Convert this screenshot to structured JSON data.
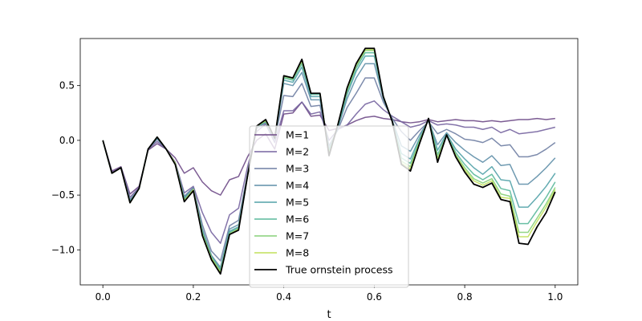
{
  "chart_data": {
    "type": "line",
    "xlabel": "t",
    "ylabel": "",
    "xlim": [
      -0.05,
      1.05
    ],
    "ylim": [
      -1.32,
      0.93
    ],
    "xticks": [
      0.0,
      0.2,
      0.4,
      0.6,
      0.8,
      1.0
    ],
    "xtick_labels": [
      "0.0",
      "0.2",
      "0.4",
      "0.6",
      "0.8",
      "1.0"
    ],
    "yticks": [
      0.5,
      0.0,
      -0.5,
      -1.0
    ],
    "ytick_labels": [
      "0.5",
      "0.0",
      "−0.5",
      "−1.0"
    ],
    "grid": false,
    "legend_position": "lower center",
    "x": [
      0.0,
      0.02,
      0.04,
      0.06,
      0.08,
      0.1,
      0.12,
      0.14,
      0.16,
      0.18,
      0.2,
      0.22,
      0.24,
      0.26,
      0.28,
      0.3,
      0.32,
      0.34,
      0.36,
      0.38,
      0.4,
      0.42,
      0.44,
      0.46,
      0.48,
      0.5,
      0.52,
      0.54,
      0.56,
      0.58,
      0.6,
      0.62,
      0.64,
      0.66,
      0.68,
      0.7,
      0.72,
      0.74,
      0.76,
      0.78,
      0.8,
      0.82,
      0.84,
      0.86,
      0.88,
      0.9,
      0.92,
      0.94,
      0.96,
      0.98,
      1.0
    ],
    "series": [
      {
        "name": "M=1",
        "color": "#6e4a87",
        "values": [
          0.0,
          -0.28,
          -0.24,
          -0.49,
          -0.42,
          -0.09,
          -0.03,
          -0.08,
          -0.16,
          -0.3,
          -0.25,
          -0.38,
          -0.46,
          -0.5,
          -0.36,
          -0.33,
          -0.15,
          0.0,
          0.06,
          -0.08,
          0.24,
          0.25,
          0.35,
          0.22,
          0.23,
          0.09,
          0.11,
          0.14,
          0.18,
          0.21,
          0.22,
          0.2,
          0.19,
          0.17,
          0.16,
          0.17,
          0.19,
          0.17,
          0.18,
          0.19,
          0.18,
          0.18,
          0.17,
          0.18,
          0.17,
          0.18,
          0.19,
          0.19,
          0.2,
          0.19,
          0.2
        ]
      },
      {
        "name": "M=2",
        "color": "#7664a0",
        "values": [
          0.0,
          -0.29,
          -0.25,
          -0.52,
          -0.43,
          -0.08,
          -0.01,
          -0.08,
          -0.2,
          -0.48,
          -0.42,
          -0.66,
          -0.84,
          -0.94,
          -0.68,
          -0.62,
          -0.24,
          0.08,
          0.15,
          -0.02,
          0.27,
          0.27,
          0.35,
          0.24,
          0.26,
          0.0,
          0.1,
          0.14,
          0.24,
          0.33,
          0.36,
          0.28,
          0.22,
          0.17,
          0.12,
          0.14,
          0.18,
          0.14,
          0.15,
          0.14,
          0.12,
          0.12,
          0.1,
          0.12,
          0.07,
          0.1,
          0.06,
          0.07,
          0.08,
          0.1,
          0.12
        ]
      },
      {
        "name": "M=3",
        "color": "#6f7ea3",
        "values": [
          0.0,
          -0.3,
          -0.25,
          -0.54,
          -0.44,
          -0.08,
          0.01,
          -0.08,
          -0.21,
          -0.51,
          -0.43,
          -0.77,
          -1.01,
          -1.1,
          -0.78,
          -0.73,
          -0.3,
          0.11,
          0.16,
          0.01,
          0.41,
          0.4,
          0.52,
          0.31,
          0.32,
          -0.05,
          0.1,
          0.3,
          0.43,
          0.57,
          0.57,
          0.35,
          0.2,
          0.08,
          0.0,
          0.09,
          0.17,
          0.06,
          0.1,
          0.06,
          0.01,
          0.0,
          -0.02,
          0.02,
          -0.05,
          -0.04,
          -0.15,
          -0.15,
          -0.13,
          -0.08,
          -0.02
        ]
      },
      {
        "name": "M=4",
        "color": "#5f8fa8",
        "values": [
          0.0,
          -0.3,
          -0.25,
          -0.55,
          -0.44,
          -0.08,
          0.02,
          -0.08,
          -0.21,
          -0.52,
          -0.44,
          -0.81,
          -1.05,
          -1.16,
          -0.81,
          -0.77,
          -0.31,
          0.12,
          0.17,
          0.01,
          0.52,
          0.5,
          0.62,
          0.37,
          0.37,
          -0.08,
          0.12,
          0.38,
          0.57,
          0.7,
          0.7,
          0.38,
          0.18,
          -0.05,
          -0.1,
          0.05,
          0.18,
          -0.04,
          0.07,
          -0.02,
          -0.09,
          -0.15,
          -0.2,
          -0.14,
          -0.23,
          -0.22,
          -0.4,
          -0.4,
          -0.33,
          -0.25,
          -0.16
        ]
      },
      {
        "name": "M=5",
        "color": "#52a2a8",
        "values": [
          0.0,
          -0.3,
          -0.25,
          -0.56,
          -0.44,
          -0.08,
          0.02,
          -0.08,
          -0.21,
          -0.53,
          -0.45,
          -0.83,
          -1.06,
          -1.18,
          -0.83,
          -0.79,
          -0.32,
          0.12,
          0.17,
          0.02,
          0.55,
          0.53,
          0.67,
          0.4,
          0.4,
          -0.1,
          0.13,
          0.42,
          0.63,
          0.77,
          0.77,
          0.39,
          0.17,
          -0.12,
          -0.17,
          0.02,
          0.19,
          -0.09,
          0.06,
          -0.08,
          -0.17,
          -0.25,
          -0.31,
          -0.24,
          -0.36,
          -0.37,
          -0.61,
          -0.61,
          -0.52,
          -0.42,
          -0.3
        ]
      },
      {
        "name": "M=6",
        "color": "#5ab89b",
        "values": [
          0.0,
          -0.3,
          -0.25,
          -0.56,
          -0.44,
          -0.08,
          0.03,
          -0.08,
          -0.21,
          -0.54,
          -0.45,
          -0.84,
          -1.07,
          -1.19,
          -0.84,
          -0.8,
          -0.32,
          0.13,
          0.17,
          0.02,
          0.57,
          0.55,
          0.7,
          0.42,
          0.42,
          -0.11,
          0.14,
          0.44,
          0.66,
          0.8,
          0.8,
          0.4,
          0.17,
          -0.16,
          -0.21,
          0.0,
          0.19,
          -0.13,
          0.05,
          -0.11,
          -0.22,
          -0.31,
          -0.36,
          -0.31,
          -0.44,
          -0.46,
          -0.76,
          -0.76,
          -0.64,
          -0.52,
          -0.38
        ]
      },
      {
        "name": "M=7",
        "color": "#87d078",
        "values": [
          0.0,
          -0.3,
          -0.25,
          -0.57,
          -0.44,
          -0.08,
          0.03,
          -0.08,
          -0.21,
          -0.55,
          -0.45,
          -0.85,
          -1.07,
          -1.2,
          -0.85,
          -0.81,
          -0.32,
          0.13,
          0.18,
          0.02,
          0.58,
          0.56,
          0.72,
          0.43,
          0.43,
          -0.12,
          0.15,
          0.46,
          0.68,
          0.82,
          0.82,
          0.4,
          0.17,
          -0.19,
          -0.24,
          -0.01,
          0.2,
          -0.16,
          0.05,
          -0.13,
          -0.25,
          -0.35,
          -0.39,
          -0.35,
          -0.49,
          -0.51,
          -0.84,
          -0.84,
          -0.71,
          -0.58,
          -0.43
        ]
      },
      {
        "name": "M=8",
        "color": "#c1e05a",
        "values": [
          0.0,
          -0.3,
          -0.25,
          -0.57,
          -0.44,
          -0.08,
          0.03,
          -0.08,
          -0.21,
          -0.55,
          -0.45,
          -0.86,
          -1.08,
          -1.21,
          -0.86,
          -0.81,
          -0.32,
          0.13,
          0.18,
          0.02,
          0.59,
          0.57,
          0.73,
          0.43,
          0.43,
          -0.13,
          0.15,
          0.47,
          0.69,
          0.83,
          0.83,
          0.4,
          0.17,
          -0.21,
          -0.26,
          -0.02,
          0.2,
          -0.18,
          0.05,
          -0.14,
          -0.27,
          -0.37,
          -0.41,
          -0.37,
          -0.52,
          -0.53,
          -0.88,
          -0.88,
          -0.74,
          -0.61,
          -0.45
        ]
      },
      {
        "name": "True ornstein process",
        "color": "#000000",
        "values": [
          0.0,
          -0.3,
          -0.25,
          -0.57,
          -0.44,
          -0.08,
          0.03,
          -0.08,
          -0.22,
          -0.56,
          -0.46,
          -0.87,
          -1.09,
          -1.22,
          -0.86,
          -0.82,
          -0.32,
          0.13,
          0.19,
          0.02,
          0.59,
          0.57,
          0.74,
          0.43,
          0.43,
          -0.14,
          0.15,
          0.48,
          0.7,
          0.84,
          0.84,
          0.4,
          0.17,
          -0.22,
          -0.28,
          -0.03,
          0.2,
          -0.2,
          0.05,
          -0.15,
          -0.29,
          -0.4,
          -0.43,
          -0.39,
          -0.54,
          -0.56,
          -0.94,
          -0.95,
          -0.79,
          -0.66,
          -0.47
        ]
      }
    ]
  }
}
